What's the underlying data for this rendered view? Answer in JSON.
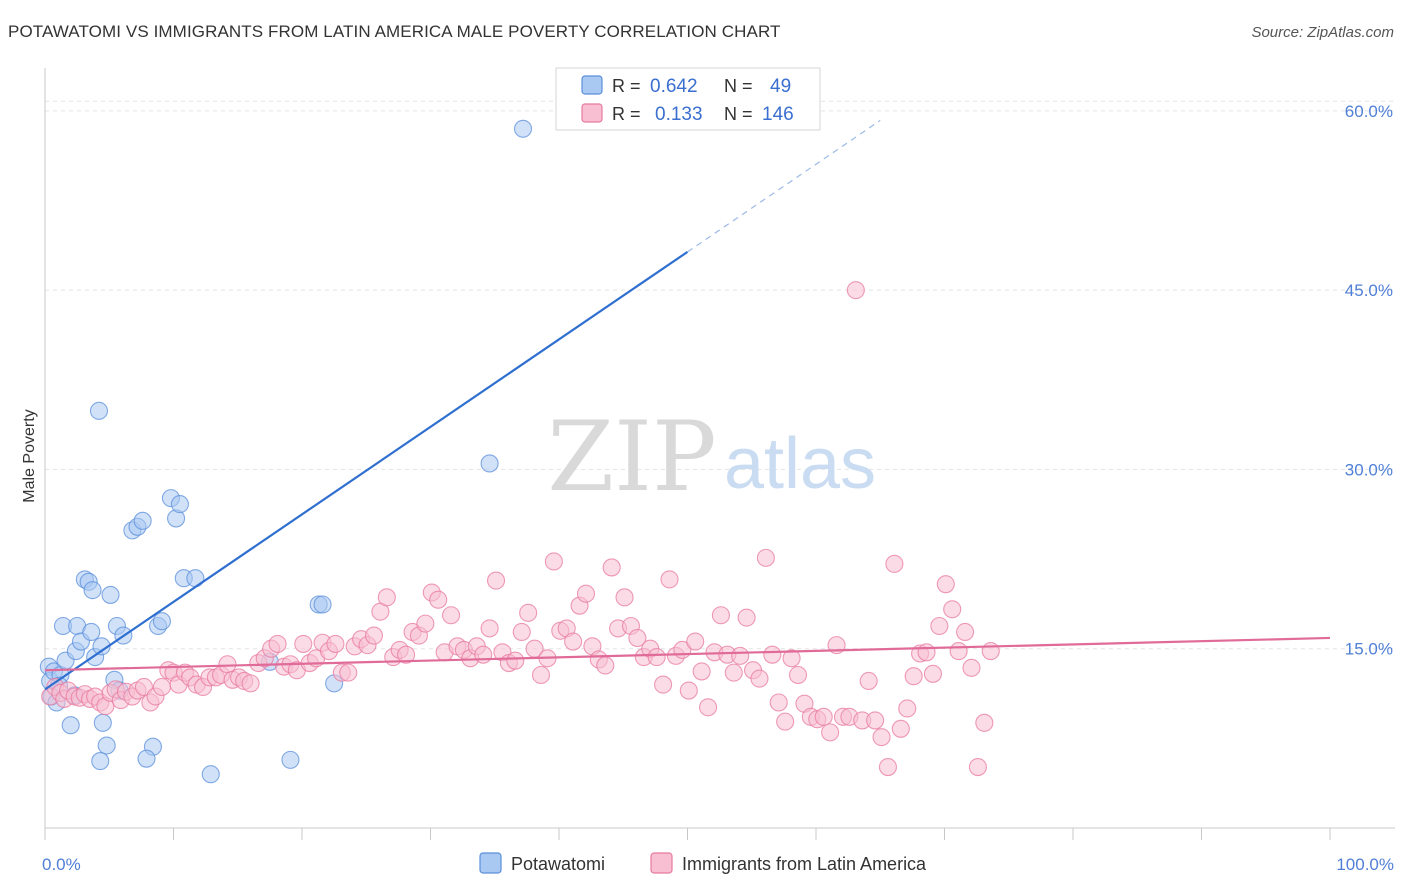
{
  "title": "POTAWATOMI VS IMMIGRANTS FROM LATIN AMERICA MALE POVERTY CORRELATION CHART",
  "source": "Source: ZipAtlas.com",
  "watermark": {
    "zip": "ZIP",
    "atlas": "atlas"
  },
  "legend": {
    "r_label": "R =",
    "n_label": "N =",
    "rows": [
      {
        "r": "0.642",
        "n": "49"
      },
      {
        "r": "0.133",
        "n": "146"
      }
    ]
  },
  "chart_data": {
    "type": "scatter",
    "xlabel": "",
    "ylabel": "Male Poverty",
    "xlim": [
      0,
      100
    ],
    "ylim": [
      0,
      63
    ],
    "x_tick_labels": [
      {
        "value": 0,
        "label": "0.0%"
      },
      {
        "value": 100,
        "label": "100.0%"
      }
    ],
    "y_ticks": [
      {
        "value": 15,
        "label": "15.0%"
      },
      {
        "value": 30,
        "label": "30.0%"
      },
      {
        "value": 45,
        "label": "45.0%"
      },
      {
        "value": 60,
        "label": "60.0%"
      }
    ],
    "x_minor_ticks": [
      0,
      10,
      20,
      30,
      40,
      50,
      60,
      70,
      80,
      90,
      100
    ],
    "grid": "horizontal dashed",
    "series": [
      {
        "name": "Potawatomi",
        "color": "#5b8fdb",
        "fill": "#a9c8f2",
        "trend": {
          "x0": 0,
          "y0": 11.6,
          "x1": 50,
          "y1": 48.2,
          "x_dash_end": 65,
          "y_dash_end": 59.2
        },
        "points": [
          [
            0.3,
            13.5
          ],
          [
            0.4,
            12.3
          ],
          [
            0.5,
            11.0
          ],
          [
            0.7,
            13.1
          ],
          [
            0.9,
            10.5
          ],
          [
            1.2,
            12.8
          ],
          [
            1.4,
            16.9
          ],
          [
            1.6,
            14.0
          ],
          [
            2.0,
            8.6
          ],
          [
            2.3,
            11.1
          ],
          [
            2.4,
            14.8
          ],
          [
            2.5,
            16.9
          ],
          [
            2.8,
            15.6
          ],
          [
            3.1,
            20.8
          ],
          [
            3.4,
            20.6
          ],
          [
            3.6,
            16.4
          ],
          [
            3.7,
            19.9
          ],
          [
            3.9,
            14.3
          ],
          [
            4.2,
            34.9
          ],
          [
            4.4,
            15.2
          ],
          [
            4.5,
            8.8
          ],
          [
            4.8,
            6.9
          ],
          [
            5.1,
            19.5
          ],
          [
            5.4,
            12.4
          ],
          [
            5.6,
            16.9
          ],
          [
            5.8,
            11.5
          ],
          [
            6.1,
            16.1
          ],
          [
            6.8,
            24.9
          ],
          [
            7.2,
            25.2
          ],
          [
            7.6,
            25.7
          ],
          [
            8.4,
            6.8
          ],
          [
            8.8,
            16.9
          ],
          [
            9.1,
            17.3
          ],
          [
            9.8,
            27.6
          ],
          [
            10.2,
            25.9
          ],
          [
            10.5,
            27.1
          ],
          [
            10.8,
            20.9
          ],
          [
            11.7,
            20.9
          ],
          [
            12.9,
            4.5
          ],
          [
            4.3,
            5.6
          ],
          [
            7.9,
            5.8
          ],
          [
            19.1,
            5.7
          ],
          [
            21.3,
            18.7
          ],
          [
            21.6,
            18.7
          ],
          [
            22.5,
            12.1
          ],
          [
            34.6,
            30.5
          ],
          [
            37.2,
            58.5
          ],
          [
            17.5,
            13.9
          ],
          [
            1.1,
            11.9
          ]
        ]
      },
      {
        "name": "Immigrants from Latin America",
        "color": "#e879a0",
        "fill": "#f8bfd2",
        "trend": {
          "x0": 0,
          "y0": 13.2,
          "x1": 100,
          "y1": 15.9
        },
        "points": [
          [
            0.4,
            11.0
          ],
          [
            0.8,
            11.8
          ],
          [
            1.2,
            11.3
          ],
          [
            1.5,
            10.8
          ],
          [
            1.8,
            11.5
          ],
          [
            2.3,
            11.0
          ],
          [
            2.7,
            10.9
          ],
          [
            3.1,
            11.2
          ],
          [
            3.5,
            10.8
          ],
          [
            3.9,
            11.0
          ],
          [
            4.3,
            10.5
          ],
          [
            4.7,
            10.2
          ],
          [
            5.1,
            11.3
          ],
          [
            5.5,
            11.6
          ],
          [
            5.9,
            10.7
          ],
          [
            6.3,
            11.4
          ],
          [
            6.8,
            11.0
          ],
          [
            7.2,
            11.5
          ],
          [
            7.7,
            11.8
          ],
          [
            8.2,
            10.5
          ],
          [
            8.6,
            11.0
          ],
          [
            9.1,
            11.8
          ],
          [
            9.6,
            13.2
          ],
          [
            10.0,
            13.0
          ],
          [
            10.4,
            12.0
          ],
          [
            10.9,
            13.0
          ],
          [
            11.3,
            12.6
          ],
          [
            11.8,
            12.0
          ],
          [
            12.3,
            11.8
          ],
          [
            12.8,
            12.6
          ],
          [
            13.3,
            12.6
          ],
          [
            13.7,
            12.8
          ],
          [
            14.2,
            13.7
          ],
          [
            14.6,
            12.4
          ],
          [
            15.1,
            12.6
          ],
          [
            15.5,
            12.3
          ],
          [
            16.0,
            12.1
          ],
          [
            16.6,
            13.8
          ],
          [
            17.1,
            14.2
          ],
          [
            17.6,
            15.0
          ],
          [
            18.1,
            15.4
          ],
          [
            18.6,
            13.5
          ],
          [
            19.1,
            13.7
          ],
          [
            19.6,
            13.2
          ],
          [
            20.1,
            15.4
          ],
          [
            20.6,
            13.8
          ],
          [
            21.1,
            14.2
          ],
          [
            21.6,
            15.5
          ],
          [
            22.1,
            14.8
          ],
          [
            22.6,
            15.4
          ],
          [
            23.1,
            13.0
          ],
          [
            23.6,
            13.0
          ],
          [
            24.1,
            15.2
          ],
          [
            24.6,
            15.8
          ],
          [
            25.1,
            15.3
          ],
          [
            25.6,
            16.1
          ],
          [
            26.1,
            18.1
          ],
          [
            26.6,
            19.3
          ],
          [
            27.1,
            14.3
          ],
          [
            27.6,
            14.9
          ],
          [
            28.1,
            14.5
          ],
          [
            28.6,
            16.4
          ],
          [
            29.1,
            16.1
          ],
          [
            29.6,
            17.1
          ],
          [
            30.1,
            19.7
          ],
          [
            30.6,
            19.1
          ],
          [
            31.1,
            14.7
          ],
          [
            31.6,
            17.8
          ],
          [
            32.1,
            15.2
          ],
          [
            32.6,
            14.9
          ],
          [
            33.1,
            14.2
          ],
          [
            33.6,
            15.2
          ],
          [
            34.1,
            14.5
          ],
          [
            34.6,
            16.7
          ],
          [
            35.1,
            20.7
          ],
          [
            35.6,
            14.7
          ],
          [
            36.1,
            13.8
          ],
          [
            36.6,
            14.0
          ],
          [
            37.1,
            16.4
          ],
          [
            37.6,
            18.0
          ],
          [
            38.1,
            15.0
          ],
          [
            38.6,
            12.8
          ],
          [
            39.1,
            14.2
          ],
          [
            39.6,
            22.3
          ],
          [
            40.1,
            16.5
          ],
          [
            40.6,
            16.7
          ],
          [
            41.1,
            15.6
          ],
          [
            41.6,
            18.6
          ],
          [
            42.1,
            19.6
          ],
          [
            42.6,
            15.2
          ],
          [
            43.1,
            14.1
          ],
          [
            43.6,
            13.6
          ],
          [
            44.1,
            21.8
          ],
          [
            44.6,
            16.7
          ],
          [
            45.1,
            19.3
          ],
          [
            45.6,
            16.9
          ],
          [
            46.1,
            15.9
          ],
          [
            46.6,
            14.3
          ],
          [
            47.1,
            15.0
          ],
          [
            47.6,
            14.3
          ],
          [
            48.1,
            12.0
          ],
          [
            48.6,
            20.8
          ],
          [
            49.1,
            14.4
          ],
          [
            49.6,
            14.9
          ],
          [
            50.1,
            11.5
          ],
          [
            50.6,
            15.6
          ],
          [
            51.1,
            13.1
          ],
          [
            51.6,
            10.1
          ],
          [
            52.1,
            14.7
          ],
          [
            52.6,
            17.8
          ],
          [
            53.1,
            14.5
          ],
          [
            53.6,
            13.0
          ],
          [
            54.1,
            14.4
          ],
          [
            54.6,
            17.6
          ],
          [
            55.1,
            13.2
          ],
          [
            55.6,
            12.5
          ],
          [
            56.1,
            22.6
          ],
          [
            56.6,
            14.5
          ],
          [
            57.1,
            10.5
          ],
          [
            57.6,
            8.9
          ],
          [
            58.1,
            14.2
          ],
          [
            58.6,
            12.8
          ],
          [
            59.1,
            10.4
          ],
          [
            59.6,
            9.3
          ],
          [
            60.1,
            9.1
          ],
          [
            60.6,
            9.3
          ],
          [
            61.1,
            8.0
          ],
          [
            61.6,
            15.3
          ],
          [
            62.1,
            9.3
          ],
          [
            62.6,
            9.3
          ],
          [
            63.1,
            45.0
          ],
          [
            63.6,
            9.0
          ],
          [
            64.1,
            12.3
          ],
          [
            64.6,
            9.0
          ],
          [
            65.1,
            7.6
          ],
          [
            65.6,
            5.1
          ],
          [
            66.1,
            22.1
          ],
          [
            66.6,
            8.3
          ],
          [
            67.1,
            10.0
          ],
          [
            67.6,
            12.7
          ],
          [
            68.1,
            14.6
          ],
          [
            68.6,
            14.7
          ],
          [
            69.1,
            12.9
          ],
          [
            69.6,
            16.9
          ],
          [
            70.1,
            20.4
          ],
          [
            70.6,
            18.3
          ],
          [
            71.1,
            14.8
          ],
          [
            71.6,
            16.4
          ],
          [
            72.1,
            13.4
          ],
          [
            72.6,
            5.1
          ],
          [
            73.1,
            8.8
          ],
          [
            73.6,
            14.8
          ]
        ]
      }
    ]
  },
  "bottom_legend": [
    {
      "label": "Potawatomi"
    },
    {
      "label": "Immigrants from Latin America"
    }
  ]
}
